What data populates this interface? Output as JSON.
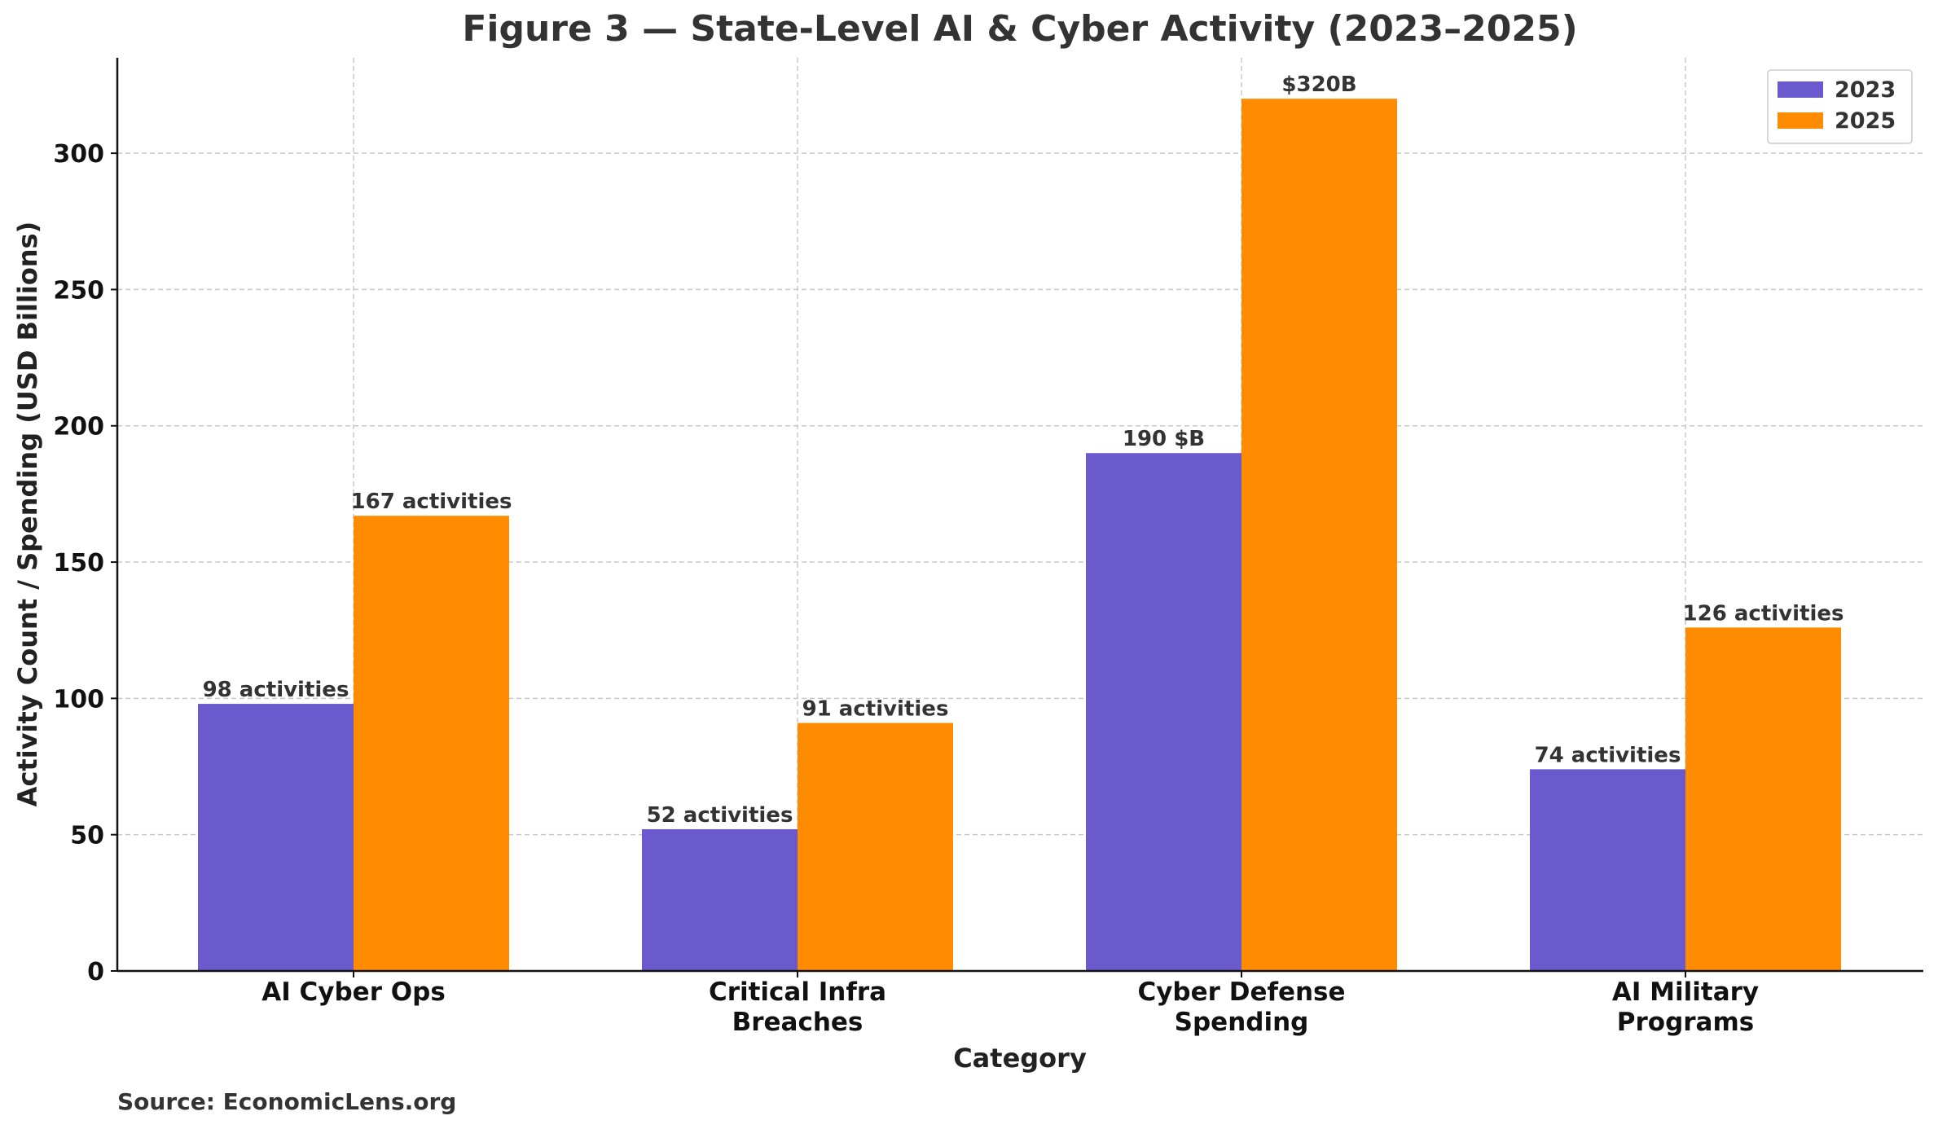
{
  "chart_data": {
    "type": "bar",
    "title": "Figure 3 — State-Level AI & Cyber Activity (2023–2025)",
    "x_label": "Category",
    "y_label": "Activity Count / Spending (USD Billions)",
    "source": "Source: EconomicLens.org",
    "categories": [
      "AI Cyber Ops",
      "Critical Infra\nBreaches",
      "Cyber Defense\nSpending",
      "AI Military\nPrograms"
    ],
    "series": [
      {
        "name": "2023",
        "color": "#6a5acd",
        "values": [
          98,
          52,
          190,
          74
        ],
        "value_labels": [
          "98 activities",
          "52 activities",
          "190 $B",
          "74 activities"
        ]
      },
      {
        "name": "2025",
        "color": "#ff8c00",
        "values": [
          167,
          91,
          320,
          126
        ],
        "value_labels": [
          "167 activities",
          "91 activities",
          "$320B",
          "126 activities"
        ]
      }
    ],
    "ylim": [
      0,
      335
    ],
    "yticks": [
      0,
      50,
      100,
      150,
      200,
      250,
      300
    ],
    "grid": true,
    "legend": "upper right"
  }
}
